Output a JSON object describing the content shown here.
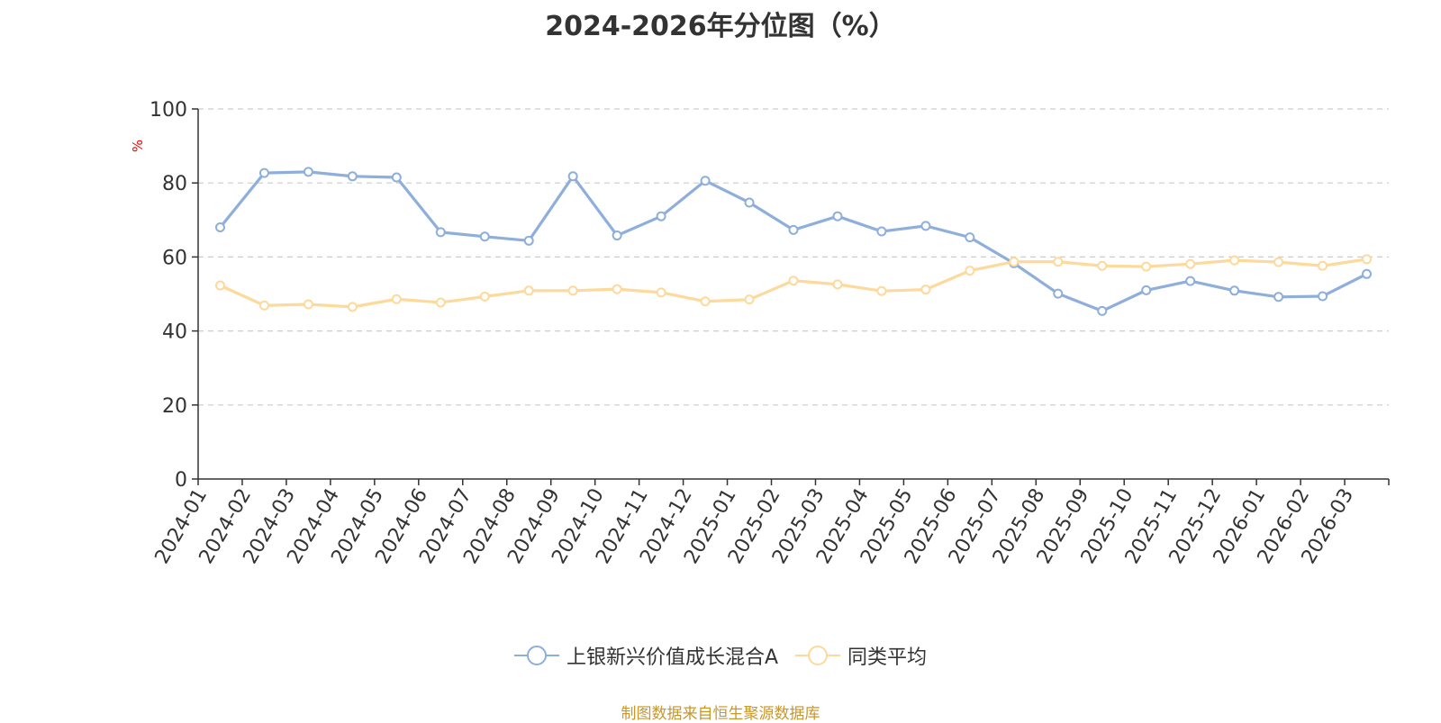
{
  "source_note": "制图数据来自恒生聚源数据库",
  "colors": {
    "series1": "#8eaedb",
    "series2": "#fdd99b",
    "axis": "#333333",
    "grid": "#cccccc",
    "unit": "#ff0000"
  },
  "chart_data": {
    "type": "line",
    "title": "2024-2026年分位图（%）",
    "ylabel": "%",
    "ylim": [
      0,
      100
    ],
    "yticks": [
      0,
      20,
      40,
      60,
      80,
      100
    ],
    "grid": true,
    "legend_position": "bottom-center",
    "categories": [
      "2024-01",
      "2024-02",
      "2024-03",
      "2024-04",
      "2024-05",
      "2024-06",
      "2024-07",
      "2024-08",
      "2024-09",
      "2024-10",
      "2024-11",
      "2024-12",
      "2025-01",
      "2025-02",
      "2025-03",
      "2025-04",
      "2025-05",
      "2025-06",
      "2025-07",
      "2025-08",
      "2025-09",
      "2025-10",
      "2025-11",
      "2025-12",
      "2026-01",
      "2026-02",
      "2026-03"
    ],
    "series": [
      {
        "name": "上银新兴价值成长混合A",
        "values": [
          68.0,
          82.7,
          83.0,
          81.8,
          81.5,
          66.7,
          65.5,
          64.4,
          81.8,
          65.8,
          71.0,
          80.6,
          74.7,
          67.3,
          71.0,
          66.9,
          68.4,
          65.3,
          58.3,
          50.1,
          45.4,
          51.0,
          53.5,
          50.9,
          49.2,
          49.4,
          55.4
        ]
      },
      {
        "name": "同类平均",
        "values": [
          52.3,
          46.9,
          47.2,
          46.5,
          48.6,
          47.7,
          49.3,
          50.9,
          50.9,
          51.3,
          50.4,
          48.0,
          48.5,
          53.6,
          52.6,
          50.8,
          51.2,
          56.3,
          58.7,
          58.7,
          57.6,
          57.4,
          58.1,
          59.1,
          58.6,
          57.6,
          59.4
        ]
      }
    ]
  }
}
